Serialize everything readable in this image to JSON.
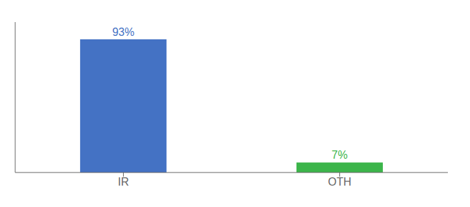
{
  "chart_data": {
    "type": "bar",
    "categories": [
      "IR",
      "OTH"
    ],
    "values": [
      93,
      7
    ],
    "value_labels": [
      "93%",
      "7%"
    ],
    "colors": [
      "#4472c4",
      "#3cb54a"
    ],
    "ylim": [
      0,
      105
    ],
    "data_labels": true,
    "tick_labels": "x"
  }
}
